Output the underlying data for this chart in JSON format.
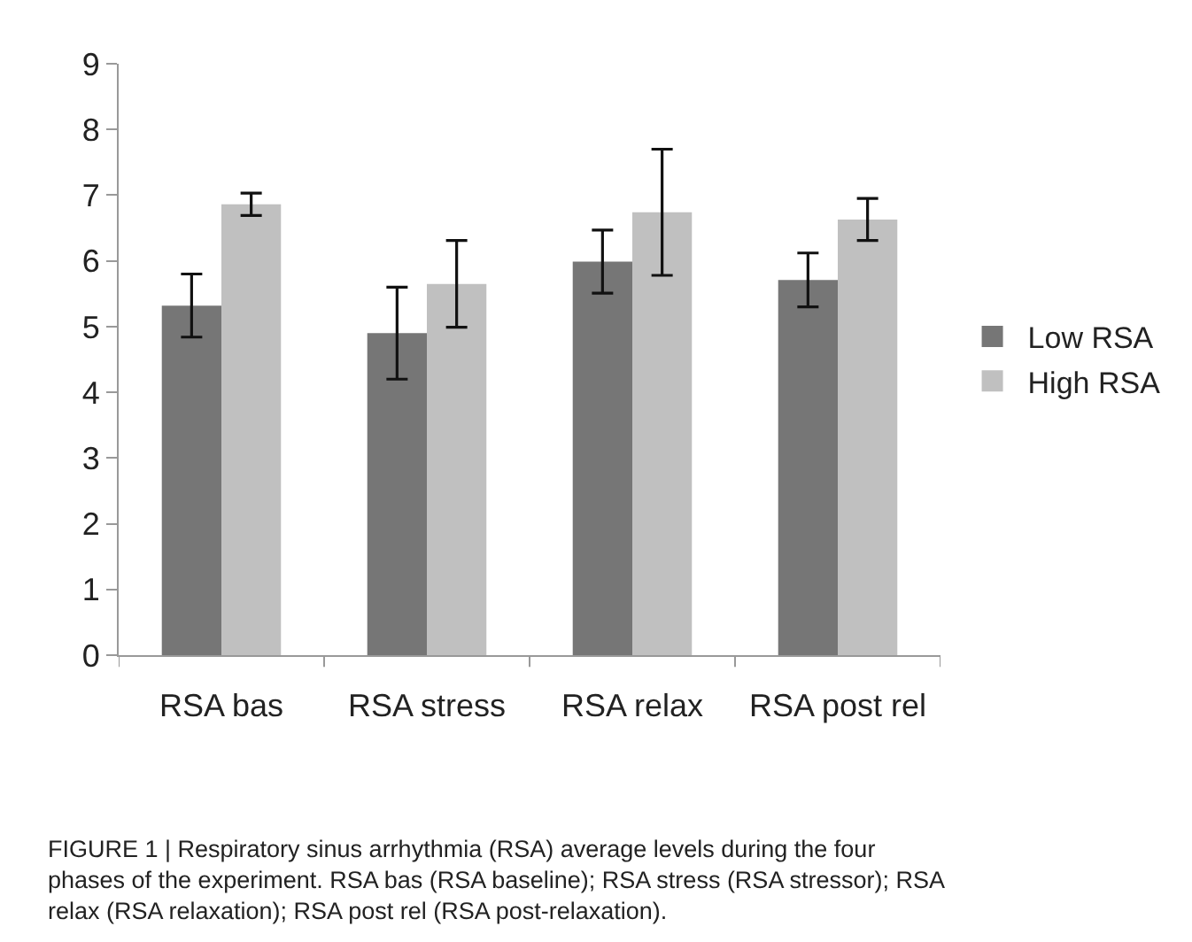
{
  "chart_data": {
    "type": "bar",
    "categories": [
      "RSA bas",
      "RSA stress",
      "RSA relax",
      "RSA post rel"
    ],
    "series": [
      {
        "name": "Low RSA",
        "color": "#767676",
        "values": [
          5.32,
          4.9,
          5.99,
          5.71
        ],
        "errors": [
          0.48,
          0.7,
          0.48,
          0.41
        ]
      },
      {
        "name": "High RSA",
        "color": "#c0c0c0",
        "values": [
          6.86,
          5.65,
          6.74,
          6.63
        ],
        "errors": [
          0.17,
          0.66,
          0.96,
          0.32
        ]
      }
    ],
    "ylim": [
      0,
      9
    ],
    "yticks": [
      0,
      1,
      2,
      3,
      4,
      5,
      6,
      7,
      8,
      9
    ],
    "grid": false,
    "legend": "right",
    "annotations": [
      "FIGURE 1 | Respiratory sinus arrhythmia (RSA) average levels during the four phases of the experiment. RSA bas (RSA baseline); RSA stress (RSA stressor); RSA relax (RSA relaxation); RSA post rel (RSA post-relaxation)."
    ]
  }
}
